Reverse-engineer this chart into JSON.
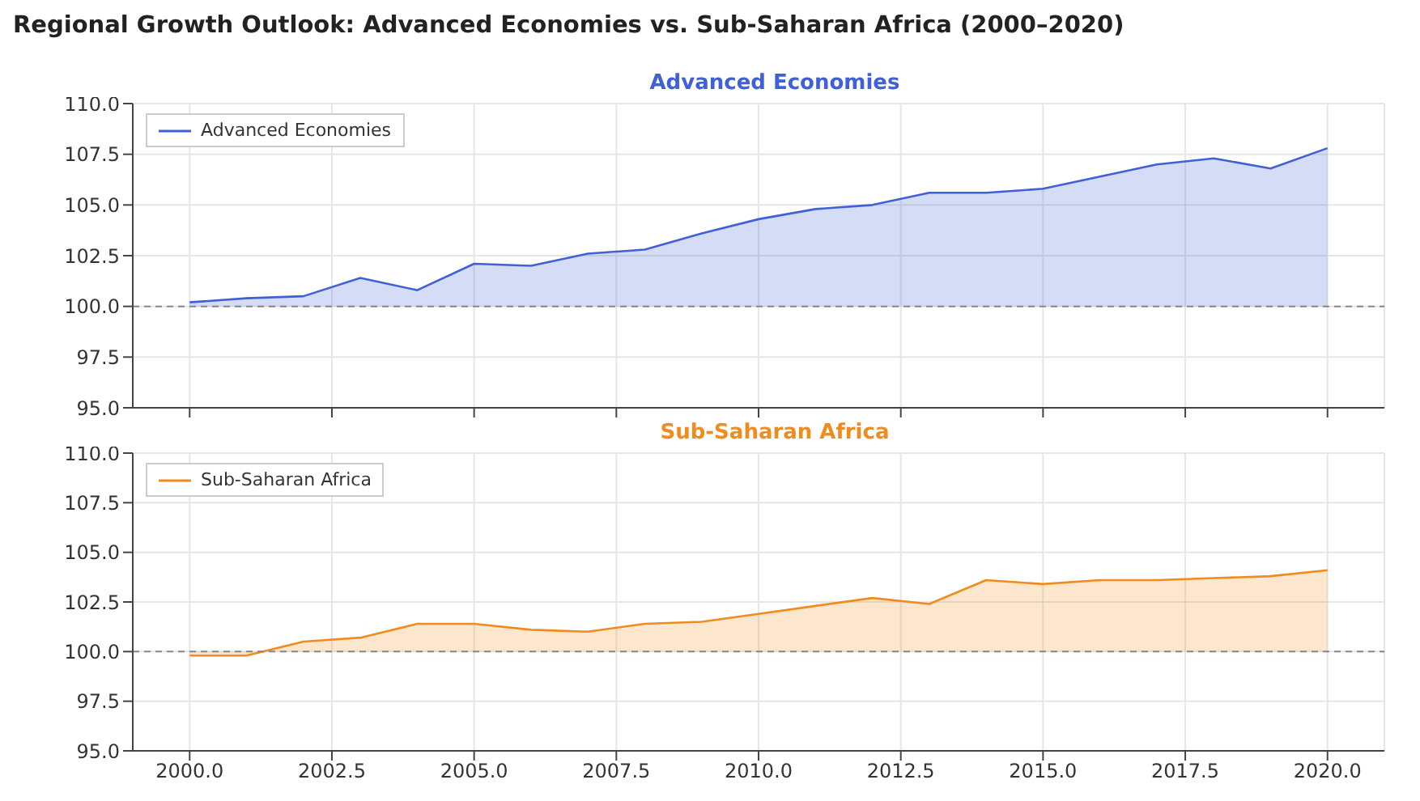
{
  "chart_data": [
    {
      "type": "area",
      "title": "Regional Growth Outlook: Advanced Economies vs. Sub-Saharan Africa (2000–2020)",
      "subtitle": "Advanced Economies",
      "x": [
        2000,
        2001,
        2002,
        2003,
        2004,
        2005,
        2006,
        2007,
        2008,
        2009,
        2010,
        2011,
        2012,
        2013,
        2014,
        2015,
        2016,
        2017,
        2018,
        2019,
        2020
      ],
      "series": [
        {
          "name": "Advanced Economies",
          "color": "#4060d8",
          "values": [
            100.2,
            100.4,
            100.5,
            101.4,
            100.8,
            102.1,
            102.0,
            102.6,
            102.8,
            103.6,
            104.3,
            104.8,
            105.0,
            105.6,
            105.6,
            105.8,
            106.4,
            107.0,
            107.3,
            106.8,
            107.8
          ]
        }
      ],
      "xlim": [
        1999,
        2021
      ],
      "xticks": [
        {
          "value": 2000,
          "label": null
        },
        {
          "value": 2002.5,
          "label": null
        },
        {
          "value": 2005,
          "label": null
        },
        {
          "value": 2007.5,
          "label": null
        },
        {
          "value": 2010,
          "label": null
        },
        {
          "value": 2012.5,
          "label": null
        },
        {
          "value": 2015,
          "label": null
        },
        {
          "value": 2017.5,
          "label": null
        },
        {
          "value": 2020,
          "label": null
        }
      ],
      "ylim": [
        95,
        110
      ],
      "yticks": [
        {
          "value": 95,
          "label": "95.0"
        },
        {
          "value": 97.5,
          "label": "97.5"
        },
        {
          "value": 100,
          "label": "100.0"
        },
        {
          "value": 102.5,
          "label": "102.5"
        },
        {
          "value": 105,
          "label": "105.0"
        },
        {
          "value": 107.5,
          "label": "107.5"
        },
        {
          "value": 110,
          "label": "110.0"
        }
      ],
      "ref_lines": [
        {
          "axis": "y",
          "value": 100,
          "color": "#888888",
          "line_style": "dashed"
        }
      ],
      "grid": true,
      "legend": "top left",
      "tick_labels": "y"
    },
    {
      "type": "area",
      "title": "Sub-Saharan Africa",
      "x": [
        2000,
        2001,
        2002,
        2003,
        2004,
        2005,
        2006,
        2007,
        2008,
        2009,
        2010,
        2011,
        2012,
        2013,
        2014,
        2015,
        2016,
        2017,
        2018,
        2019,
        2020
      ],
      "series": [
        {
          "name": "Sub-Saharan Africa",
          "color": "#f08c1e",
          "values": [
            99.8,
            99.8,
            100.5,
            100.7,
            101.4,
            101.4,
            101.1,
            101.0,
            101.4,
            101.5,
            101.9,
            102.3,
            102.7,
            102.4,
            103.6,
            103.4,
            103.6,
            103.6,
            103.7,
            103.8,
            104.1
          ]
        }
      ],
      "xlim": [
        1999,
        2021
      ],
      "xticks": [
        {
          "value": 2000,
          "label": "2000.0"
        },
        {
          "value": 2002.5,
          "label": "2002.5"
        },
        {
          "value": 2005,
          "label": "2005.0"
        },
        {
          "value": 2007.5,
          "label": "2007.5"
        },
        {
          "value": 2010,
          "label": "2010.0"
        },
        {
          "value": 2012.5,
          "label": "2012.5"
        },
        {
          "value": 2015,
          "label": "2015.0"
        },
        {
          "value": 2017.5,
          "label": "2017.5"
        },
        {
          "value": 2020,
          "label": "2020.0"
        }
      ],
      "ylim": [
        95,
        110
      ],
      "yticks": [
        {
          "value": 95,
          "label": "95.0"
        },
        {
          "value": 97.5,
          "label": "97.5"
        },
        {
          "value": 100,
          "label": "100.0"
        },
        {
          "value": 102.5,
          "label": "102.5"
        },
        {
          "value": 105,
          "label": "105.0"
        },
        {
          "value": 107.5,
          "label": "107.5"
        },
        {
          "value": 110,
          "label": "110.0"
        }
      ],
      "ref_lines": [
        {
          "axis": "y",
          "value": 100,
          "color": "#888888",
          "line_style": "dashed"
        }
      ],
      "grid": true,
      "legend": "top left"
    }
  ]
}
